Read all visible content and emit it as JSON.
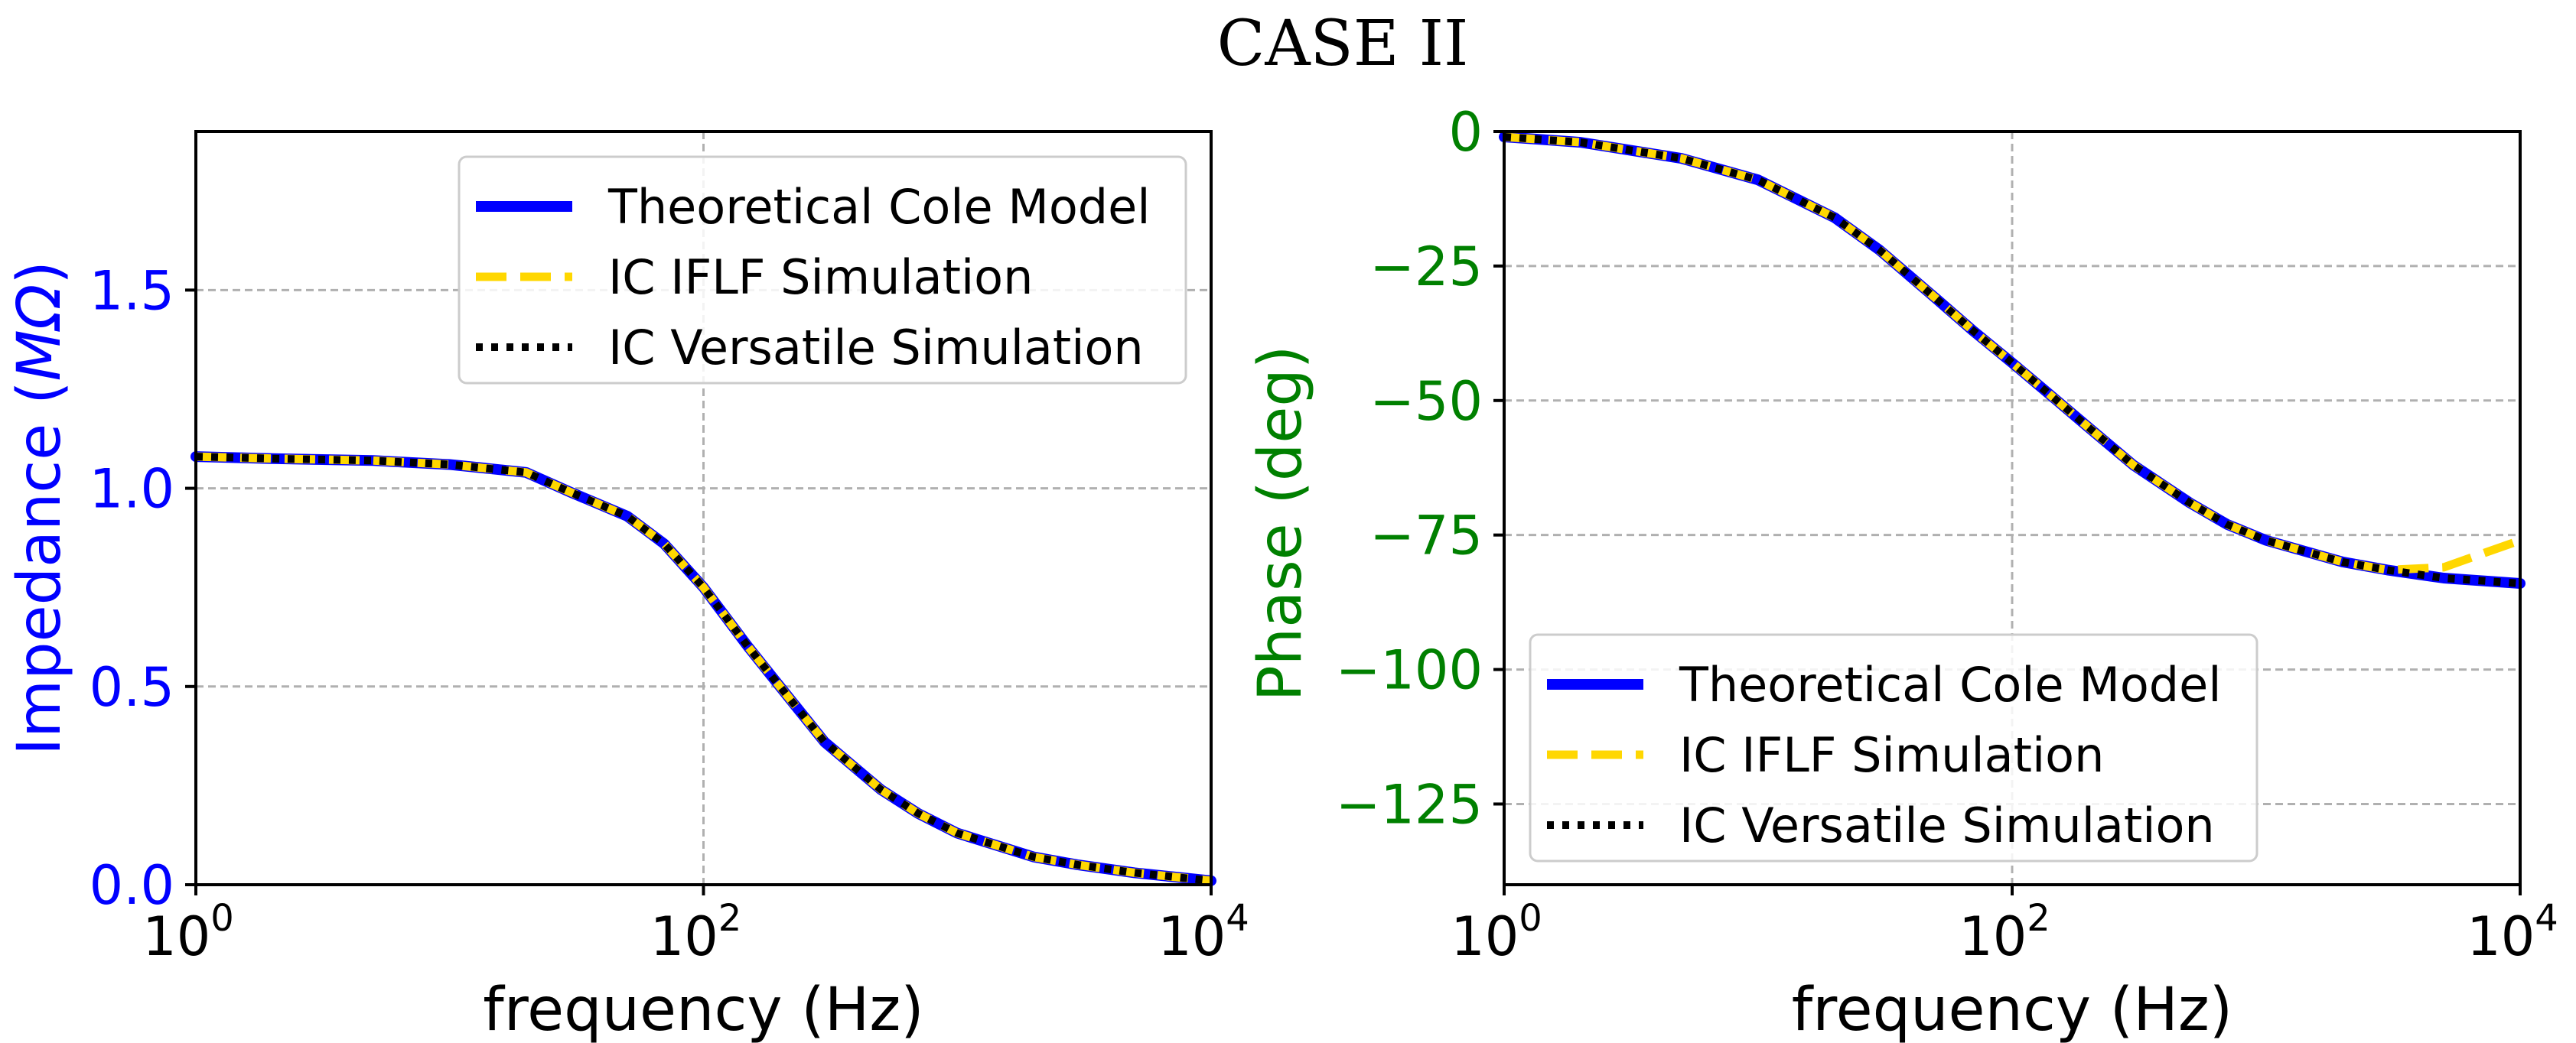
{
  "title": "CASE II",
  "chart_data": [
    {
      "type": "line",
      "xscale": "log",
      "xlim": [
        1,
        10000
      ],
      "ylim": [
        0,
        1.9
      ],
      "xlabel": "frequency (Hz)",
      "ylabel_parts": [
        "Impedance (",
        "MΩ",
        ")"
      ],
      "ylabel_color": "#0000ff",
      "xticks": [
        {
          "value": 1,
          "base": "10",
          "exp": "0"
        },
        {
          "value": 100,
          "base": "10",
          "exp": "2"
        },
        {
          "value": 10000,
          "base": "10",
          "exp": "4"
        }
      ],
      "yticks": [
        {
          "value": 0,
          "label": "0.0"
        },
        {
          "value": 0.5,
          "label": "0.5"
        },
        {
          "value": 1.0,
          "label": "1.0"
        },
        {
          "value": 1.5,
          "label": "1.5"
        }
      ],
      "grid": true,
      "legend_position": "upper right",
      "x": [
        1,
        2,
        5,
        10,
        20,
        30,
        50,
        70,
        100,
        150,
        200,
        300,
        500,
        700,
        1000,
        2000,
        3000,
        5000,
        10000
      ],
      "series": [
        {
          "name": "Theoretical Cole Model",
          "color": "#0000ff",
          "style": "solid",
          "values": [
            1.08,
            1.075,
            1.07,
            1.06,
            1.04,
            0.99,
            0.93,
            0.86,
            0.75,
            0.6,
            0.5,
            0.36,
            0.24,
            0.18,
            0.13,
            0.07,
            0.05,
            0.03,
            0.01
          ]
        },
        {
          "name": "IC IFLF Simulation",
          "color": "#ffd700",
          "style": "dashed",
          "values": [
            1.08,
            1.075,
            1.07,
            1.06,
            1.04,
            0.99,
            0.93,
            0.86,
            0.75,
            0.6,
            0.5,
            0.36,
            0.24,
            0.18,
            0.13,
            0.07,
            0.05,
            0.03,
            0.01
          ]
        },
        {
          "name": "IC Versatile Simulation",
          "color": "#000000",
          "style": "dotted",
          "values": [
            1.08,
            1.075,
            1.07,
            1.06,
            1.04,
            0.99,
            0.93,
            0.86,
            0.75,
            0.6,
            0.5,
            0.36,
            0.24,
            0.18,
            0.13,
            0.07,
            0.05,
            0.03,
            0.01
          ]
        }
      ]
    },
    {
      "type": "line",
      "xscale": "log",
      "xlim": [
        1,
        10000
      ],
      "ylim": [
        -140,
        0
      ],
      "xlabel": "frequency (Hz)",
      "ylabel": "Phase (deg)",
      "ylabel_color": "#008000",
      "xticks": [
        {
          "value": 1,
          "base": "10",
          "exp": "0"
        },
        {
          "value": 100,
          "base": "10",
          "exp": "2"
        },
        {
          "value": 10000,
          "base": "10",
          "exp": "4"
        }
      ],
      "yticks": [
        {
          "value": 0,
          "label": "0"
        },
        {
          "value": -25,
          "label": "−25"
        },
        {
          "value": -50,
          "label": "−50"
        },
        {
          "value": -75,
          "label": "−75"
        },
        {
          "value": -100,
          "label": "−100"
        },
        {
          "value": -125,
          "label": "−125"
        }
      ],
      "grid": true,
      "legend_position": "lower left",
      "x": [
        1,
        2,
        5,
        10,
        20,
        30,
        50,
        70,
        100,
        150,
        200,
        300,
        500,
        700,
        1000,
        2000,
        3000,
        5000,
        10000
      ],
      "series": [
        {
          "name": "Theoretical Cole Model",
          "color": "#0000ff",
          "style": "solid",
          "values": [
            -1,
            -2,
            -5,
            -9,
            -16,
            -22,
            -31,
            -37,
            -43,
            -50,
            -55,
            -62,
            -69,
            -73,
            -76,
            -80,
            -81.5,
            -83,
            -84
          ]
        },
        {
          "name": "IC IFLF Simulation",
          "color": "#ffd700",
          "style": "dashed",
          "values": [
            -1,
            -2,
            -5,
            -9,
            -16,
            -22,
            -31,
            -37,
            -43,
            -50,
            -55,
            -62,
            -69,
            -73,
            -76,
            -80,
            -81.5,
            -81,
            -76
          ]
        },
        {
          "name": "IC Versatile Simulation",
          "color": "#000000",
          "style": "dotted",
          "values": [
            -1,
            -2,
            -5,
            -9,
            -16,
            -22,
            -31,
            -37,
            -43,
            -50,
            -55,
            -62,
            -69,
            -73,
            -76,
            -80,
            -81.5,
            -83,
            -84
          ]
        }
      ]
    }
  ]
}
